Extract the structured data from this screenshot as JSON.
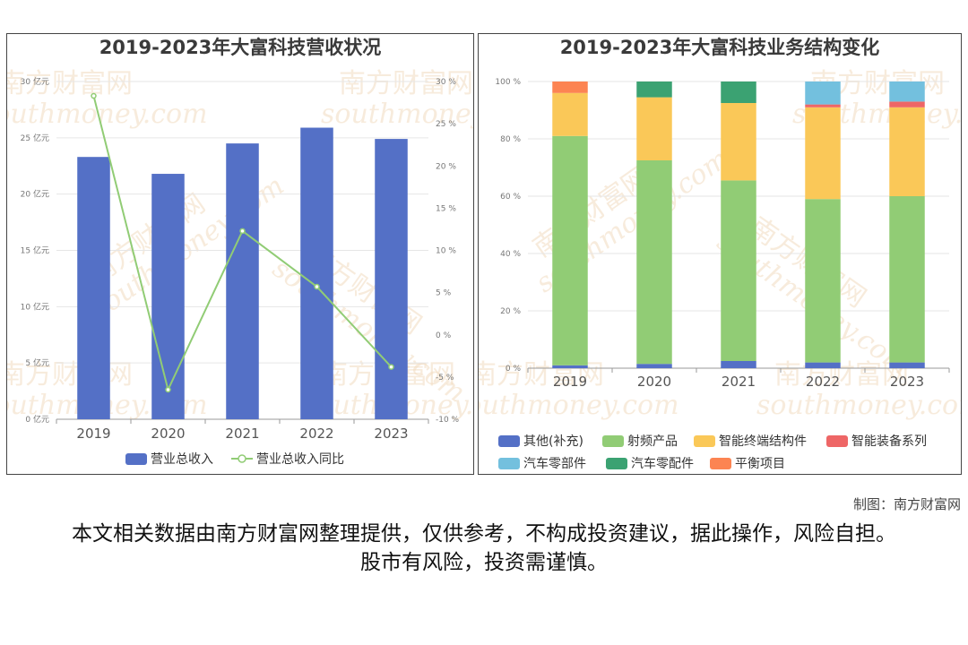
{
  "charts": [
    {
      "type": "bar+line",
      "title": "2019-2023年大富科技营收状况",
      "categories": [
        "2019",
        "2020",
        "2021",
        "2022",
        "2023"
      ],
      "left_axis": {
        "range": [
          0,
          30
        ],
        "ticks": [
          "0 亿元",
          "5 亿元",
          "10 亿元",
          "15 亿元",
          "20 亿元",
          "25 亿元",
          "30 亿元"
        ]
      },
      "right_axis": {
        "range": [
          -10,
          30
        ],
        "ticks": [
          "-10 %",
          "-5 %",
          "0 %",
          "5 %",
          "10 %",
          "15 %",
          "20 %",
          "25 %",
          "30 %"
        ]
      },
      "series": [
        {
          "name": "营业总收入",
          "type": "bar",
          "axis": "left",
          "color": "#5470c6",
          "values": [
            23.3,
            21.8,
            24.5,
            25.9,
            24.9
          ]
        },
        {
          "name": "营业总收入同比",
          "type": "line",
          "axis": "right",
          "color": "#91cc75",
          "values": [
            28.3,
            -6.5,
            12.3,
            5.7,
            -3.8
          ]
        }
      ],
      "legend_position": "bottom",
      "grid": true
    },
    {
      "type": "stacked-bar",
      "title": "2019-2023年大富科技业务结构变化",
      "categories": [
        "2019",
        "2020",
        "2021",
        "2022",
        "2023"
      ],
      "y_axis": {
        "range": [
          0,
          100
        ],
        "ticks": [
          "0 %",
          "20 %",
          "40 %",
          "60 %",
          "80 %",
          "100 %"
        ]
      },
      "series": [
        {
          "name": "其他(补充)",
          "color": "#5470c6",
          "values": [
            1.0,
            1.5,
            2.5,
            2.0,
            2.0
          ]
        },
        {
          "name": "射频产品",
          "color": "#91cc75",
          "values": [
            80.0,
            71.0,
            63.0,
            57.0,
            58.0
          ]
        },
        {
          "name": "智能终端结构件",
          "color": "#fac858",
          "values": [
            15.0,
            22.0,
            27.0,
            32.0,
            31.0
          ]
        },
        {
          "name": "智能装备系列",
          "color": "#ee6666",
          "values": [
            0.0,
            0.0,
            0.0,
            1.0,
            2.0
          ]
        },
        {
          "name": "汽车零部件",
          "color": "#73c0de",
          "values": [
            0.0,
            0.0,
            0.0,
            8.0,
            7.0
          ]
        },
        {
          "name": "汽车零配件",
          "color": "#3ba272",
          "values": [
            0.0,
            5.5,
            7.5,
            0.0,
            0.0
          ]
        },
        {
          "name": "平衡项目",
          "color": "#fc8452",
          "values": [
            4.0,
            0.0,
            0.0,
            0.0,
            0.0
          ]
        }
      ],
      "legend_position": "bottom"
    }
  ],
  "watermark": {
    "cn": "南方财富网",
    "en": "southmoney.com"
  },
  "credit": "制图：南方财富网",
  "disclaimer": "本文相关数据由南方财富网整理提供，仅供参考，不构成投资建议，据此操作，风险自担。股市有风险，投资需谨慎。"
}
